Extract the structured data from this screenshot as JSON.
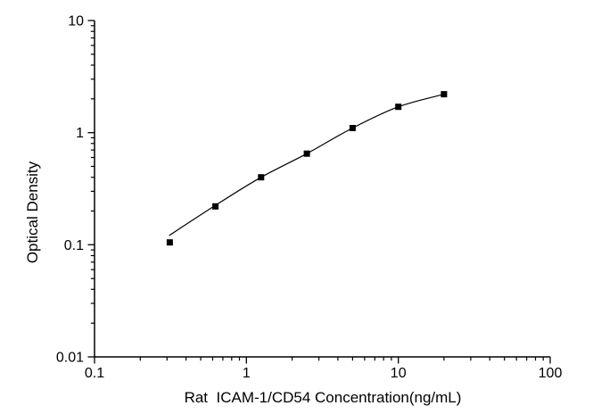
{
  "chart_data": {
    "type": "line",
    "title": "",
    "xlabel": "Rat  ICAM-1/CD54 Concentration(ng/mL)",
    "ylabel": "Optical Density",
    "x_scale": "log",
    "y_scale": "log",
    "xlim": [
      0.1,
      100
    ],
    "ylim": [
      0.01,
      10
    ],
    "x_ticks": [
      {
        "v": 0.1,
        "label": "0.1"
      },
      {
        "v": 1,
        "label": "1"
      },
      {
        "v": 10,
        "label": "10"
      },
      {
        "v": 100,
        "label": "100"
      }
    ],
    "y_ticks": [
      {
        "v": 0.01,
        "label": "0.01"
      },
      {
        "v": 0.1,
        "label": "0.1"
      },
      {
        "v": 1,
        "label": "1"
      },
      {
        "v": 10,
        "label": "10"
      }
    ],
    "minor_ticks": "log-2-to-9-per-decade",
    "grid": false,
    "legend": "none",
    "series": [
      {
        "name": "standard-curve-points",
        "marker": "filled-square",
        "x": [
          0.313,
          0.625,
          1.25,
          2.5,
          5,
          10,
          20
        ],
        "y": [
          0.105,
          0.22,
          0.4,
          0.65,
          1.1,
          1.7,
          2.2
        ]
      }
    ],
    "fit_curve": {
      "name": "fitted-standard-curve",
      "x": [
        0.31,
        0.625,
        1.25,
        2.5,
        5,
        10,
        20
      ],
      "y": [
        0.121,
        0.225,
        0.4,
        0.65,
        1.1,
        1.7,
        2.2
      ]
    },
    "colors": {
      "line": "#000000",
      "marker": "#000000",
      "axis": "#000000",
      "text": "#000000",
      "background": "#ffffff"
    }
  }
}
